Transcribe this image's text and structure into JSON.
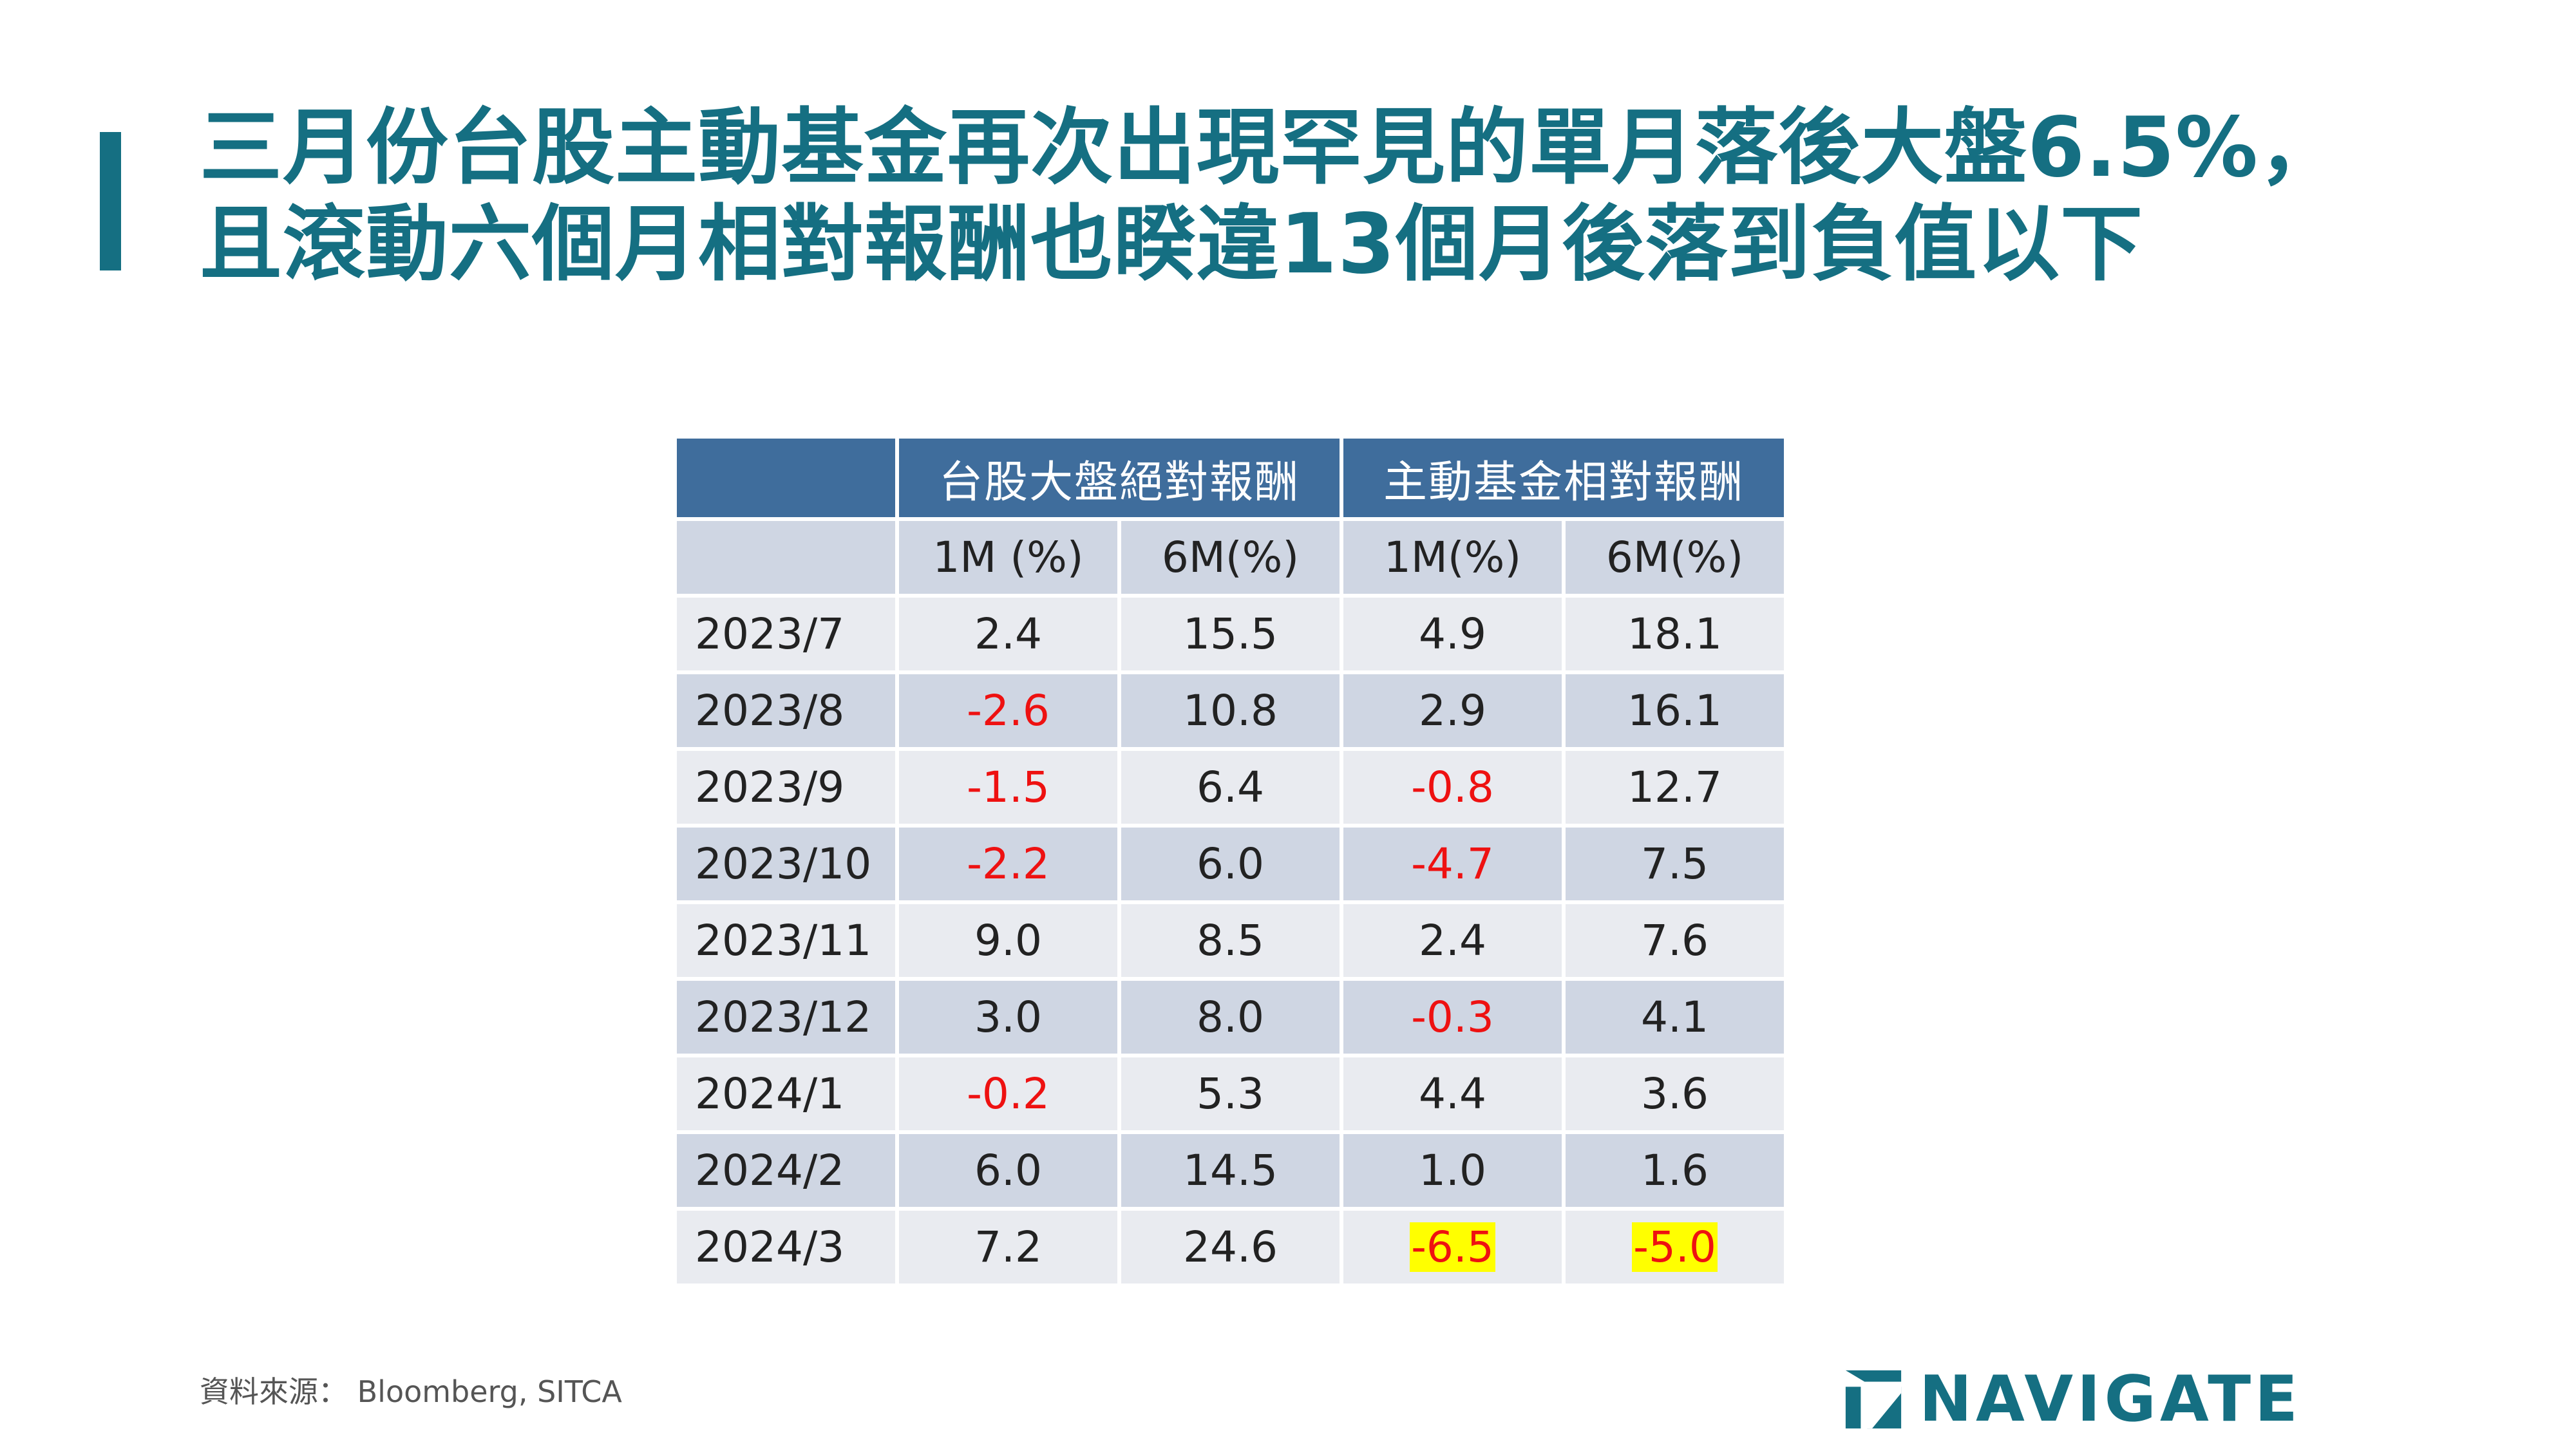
{
  "title": {
    "line1": "三月份台股主動基金再次出現罕見的單月落後大盤6.5%，",
    "line2": "且滾動六個月相對報酬也睽違13個月後落到負值以下"
  },
  "table": {
    "group_headers": [
      "",
      "台股大盤絕對報酬",
      "主動基金相對報酬"
    ],
    "sub_headers": [
      "",
      "1M (%)",
      "6M(%)",
      "1M(%)",
      "6M(%)"
    ],
    "rows": [
      {
        "date": "2023/7",
        "cells": [
          "2.4",
          "15.5",
          "4.9",
          "18.1"
        ]
      },
      {
        "date": "2023/8",
        "cells": [
          "-2.6",
          "10.8",
          "2.9",
          "16.1"
        ]
      },
      {
        "date": "2023/9",
        "cells": [
          "-1.5",
          "6.4",
          "-0.8",
          "12.7"
        ]
      },
      {
        "date": "2023/10",
        "cells": [
          "-2.2",
          "6.0",
          "-4.7",
          "7.5"
        ]
      },
      {
        "date": "2023/11",
        "cells": [
          "9.0",
          "8.5",
          "2.4",
          "7.6"
        ]
      },
      {
        "date": "2023/12",
        "cells": [
          "3.0",
          "8.0",
          "-0.3",
          "4.1"
        ]
      },
      {
        "date": "2024/1",
        "cells": [
          "-0.2",
          "5.3",
          "4.4",
          "3.6"
        ]
      },
      {
        "date": "2024/2",
        "cells": [
          "6.0",
          "14.5",
          "1.0",
          "1.6"
        ]
      },
      {
        "date": "2024/3",
        "cells": [
          "7.2",
          "24.6",
          "-6.5",
          "-5.0"
        ]
      }
    ],
    "highlighted_cells": [
      "2024/3:2",
      "2024/3:3"
    ]
  },
  "source": "資料來源： Bloomberg, SITCA",
  "logo": {
    "text": "NAVIGATE"
  },
  "colors": {
    "brand": "#156f82",
    "header": "#3f6d9c",
    "row_light": "#e9ebf0",
    "row_dark": "#cfd6e3",
    "negative": "#ee1111",
    "highlight": "#ffff00"
  }
}
